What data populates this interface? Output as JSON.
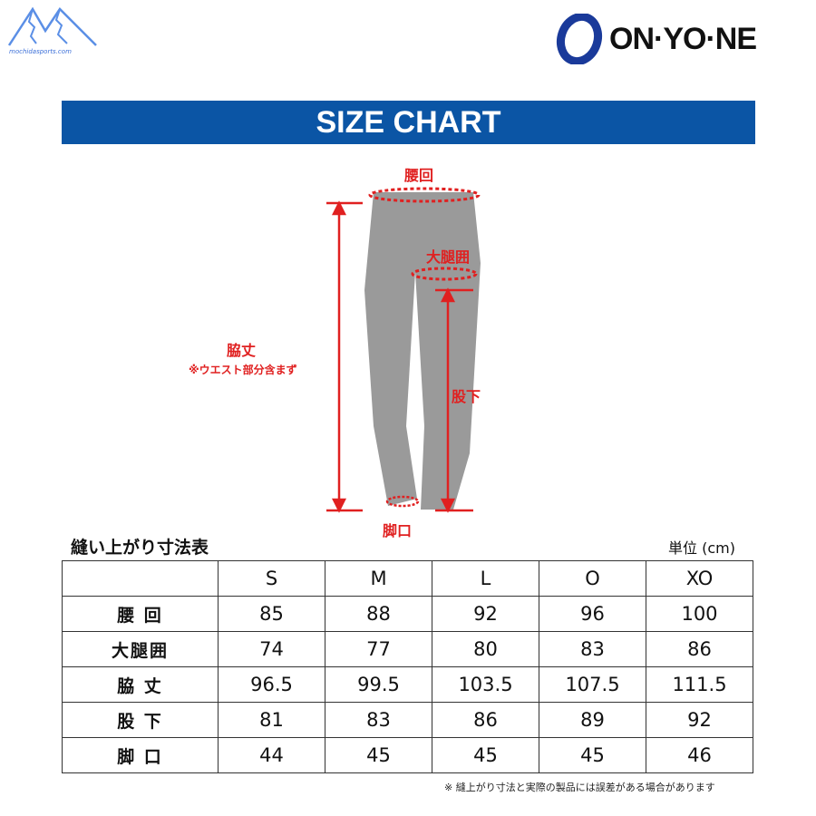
{
  "logos": {
    "left_site": "mochidasports.com",
    "brand": "ON·YO·NE",
    "brand_blue": "#1a3a9a"
  },
  "banner": {
    "title": "SIZE CHART",
    "color": "#0b55a5"
  },
  "diagram": {
    "waist": "腰回",
    "thigh": "大腿囲",
    "side_length": "脇丈",
    "side_note": "※ウエスト部分含まず",
    "inseam": "股下",
    "hem": "脚口",
    "accent": "#e02020"
  },
  "table": {
    "title": "縫い上がり寸法表",
    "unit": "単位 (cm)",
    "headers": [
      "",
      "S",
      "M",
      "L",
      "O",
      "XO"
    ],
    "rows": [
      {
        "label": "腰 回",
        "values": [
          "85",
          "88",
          "92",
          "96",
          "100"
        ]
      },
      {
        "label": "大腿囲",
        "values": [
          "74",
          "77",
          "80",
          "83",
          "86"
        ]
      },
      {
        "label": "脇 丈",
        "values": [
          "96.5",
          "99.5",
          "103.5",
          "107.5",
          "111.5"
        ]
      },
      {
        "label": "股 下",
        "values": [
          "81",
          "83",
          "86",
          "89",
          "92"
        ]
      },
      {
        "label": "脚 口",
        "values": [
          "44",
          "45",
          "45",
          "45",
          "46"
        ]
      }
    ],
    "note": "※ 縫上がり寸法と実際の製品には誤差がある場合があります"
  }
}
